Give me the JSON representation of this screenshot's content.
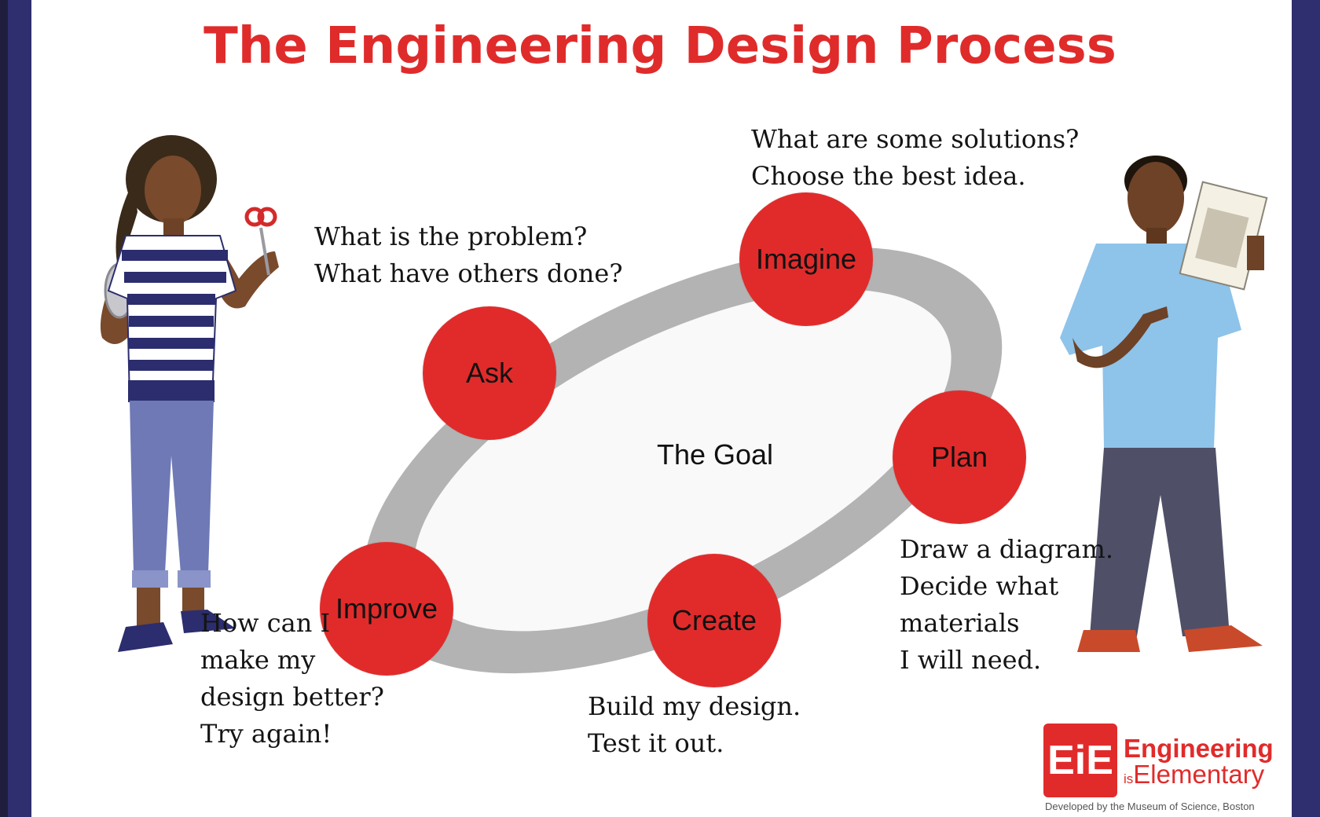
{
  "title": "The Engineering Design Process",
  "center_label": "The Goal",
  "stages": [
    {
      "label": "Ask",
      "prompts": [
        "What is the problem?",
        "What have others done?"
      ]
    },
    {
      "label": "Imagine",
      "prompts": [
        "What are some solutions?",
        "Choose the best idea."
      ]
    },
    {
      "label": "Plan",
      "prompts": [
        "Draw a diagram.",
        "Decide what",
        "materials",
        "I will need."
      ]
    },
    {
      "label": "Create",
      "prompts": [
        "Build my design.",
        "Test it out."
      ]
    },
    {
      "label": "Improve",
      "prompts": [
        "How can I",
        "make my",
        "design better?",
        "Try again!"
      ]
    }
  ],
  "logo": {
    "mark": "EiE",
    "word1": "Engineering",
    "word2_prefix": "is",
    "word2": "Elementary",
    "credit": "Developed by the Museum of Science, Boston"
  },
  "colors": {
    "accent": "#e12b2b",
    "frame": "#2f2e6e",
    "ring": "#b3b3b3"
  },
  "illustrations": [
    "girl-with-scissors-and-tape",
    "boy-with-project-notebook"
  ]
}
